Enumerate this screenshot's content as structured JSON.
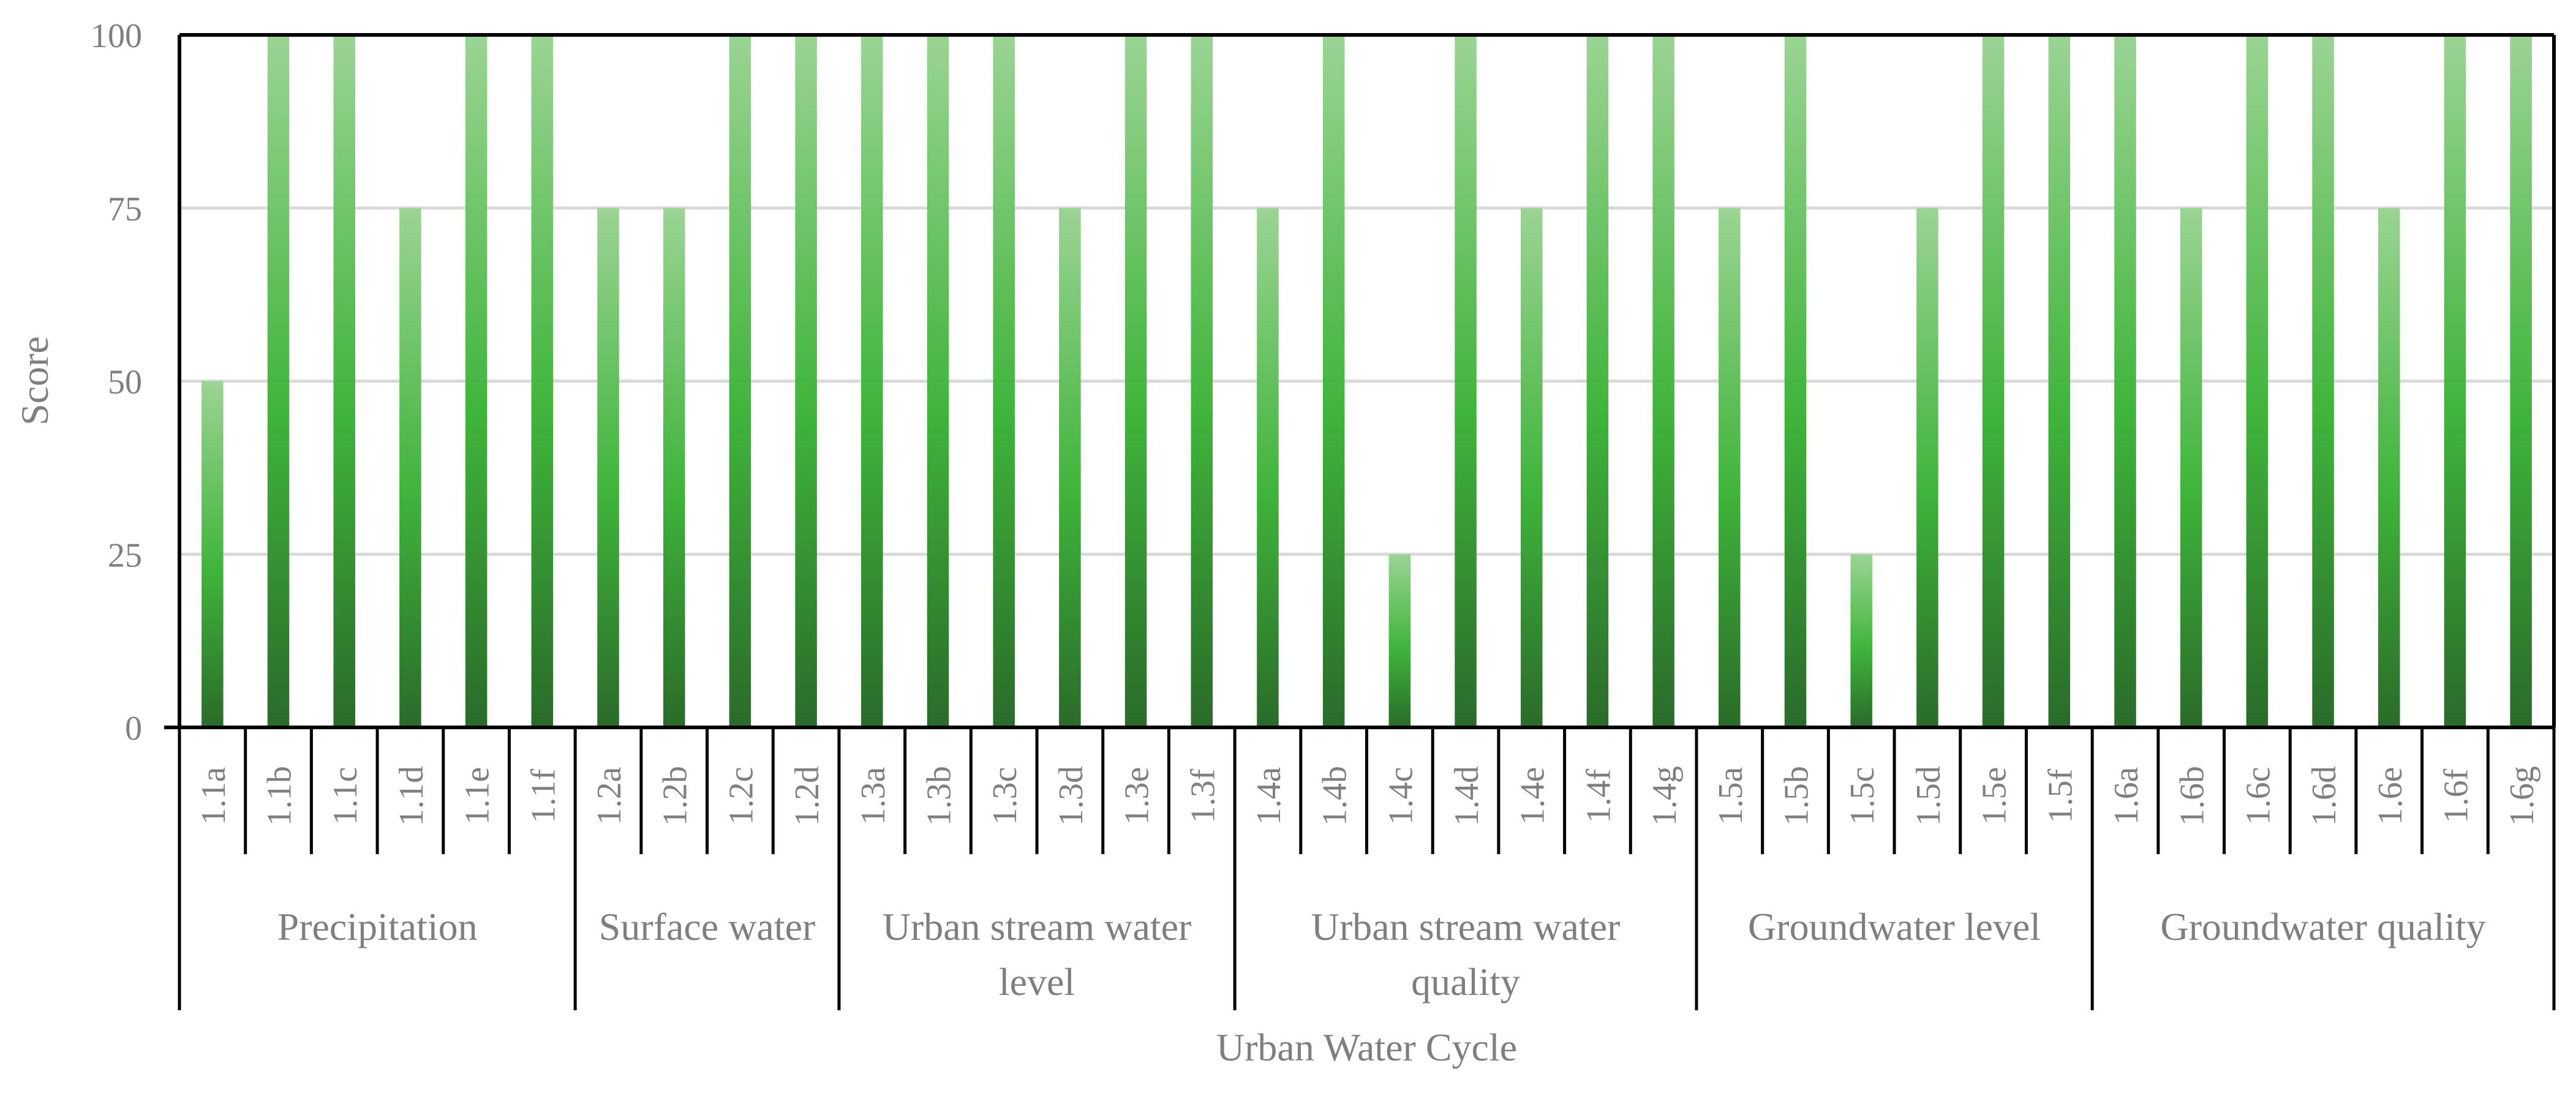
{
  "chart_data": {
    "type": "bar",
    "ylabel": "Score",
    "xlabel": "Urban Water Cycle",
    "ylim": [
      0,
      100
    ],
    "yticks": [
      0,
      25,
      50,
      75,
      100
    ],
    "grid": true,
    "bar_color_top": "#9bd494",
    "bar_color_mid": "#3fb43a",
    "bar_color_bottom": "#2a6b2a",
    "groups": [
      {
        "name": "Precipitation",
        "name_lines": [
          "Precipitation"
        ],
        "categories": [
          "1.1a",
          "1.1b",
          "1.1c",
          "1.1d",
          "1.1e",
          "1.1f"
        ],
        "values": [
          50,
          100,
          100,
          75,
          100,
          100
        ]
      },
      {
        "name": "Surface water",
        "name_lines": [
          "Surface water"
        ],
        "categories": [
          "1.2a",
          "1.2b",
          "1.2c",
          "1.2d"
        ],
        "values": [
          75,
          75,
          100,
          100
        ]
      },
      {
        "name": "Urban stream water level",
        "name_lines": [
          "Urban stream water",
          "level"
        ],
        "categories": [
          "1.3a",
          "1.3b",
          "1.3c",
          "1.3d",
          "1.3e",
          "1.3f"
        ],
        "values": [
          100,
          100,
          100,
          75,
          100,
          100
        ]
      },
      {
        "name": "Urban stream water quality",
        "name_lines": [
          "Urban stream water",
          "quality"
        ],
        "categories": [
          "1.4a",
          "1.4b",
          "1.4c",
          "1.4d",
          "1.4e",
          "1.4f",
          "1.4g"
        ],
        "values": [
          75,
          100,
          25,
          100,
          75,
          100,
          100
        ]
      },
      {
        "name": "Groundwater level",
        "name_lines": [
          "Groundwater level"
        ],
        "categories": [
          "1.5a",
          "1.5b",
          "1.5c",
          "1.5d",
          "1.5e",
          "1.5f"
        ],
        "values": [
          75,
          100,
          25,
          75,
          100,
          100
        ]
      },
      {
        "name": "Groundwater quality",
        "name_lines": [
          "Groundwater quality"
        ],
        "categories": [
          "1.6a",
          "1.6b",
          "1.6c",
          "1.6d",
          "1.6e",
          "1.6f",
          "1.6g"
        ],
        "values": [
          100,
          75,
          100,
          100,
          75,
          100,
          100
        ]
      }
    ]
  }
}
